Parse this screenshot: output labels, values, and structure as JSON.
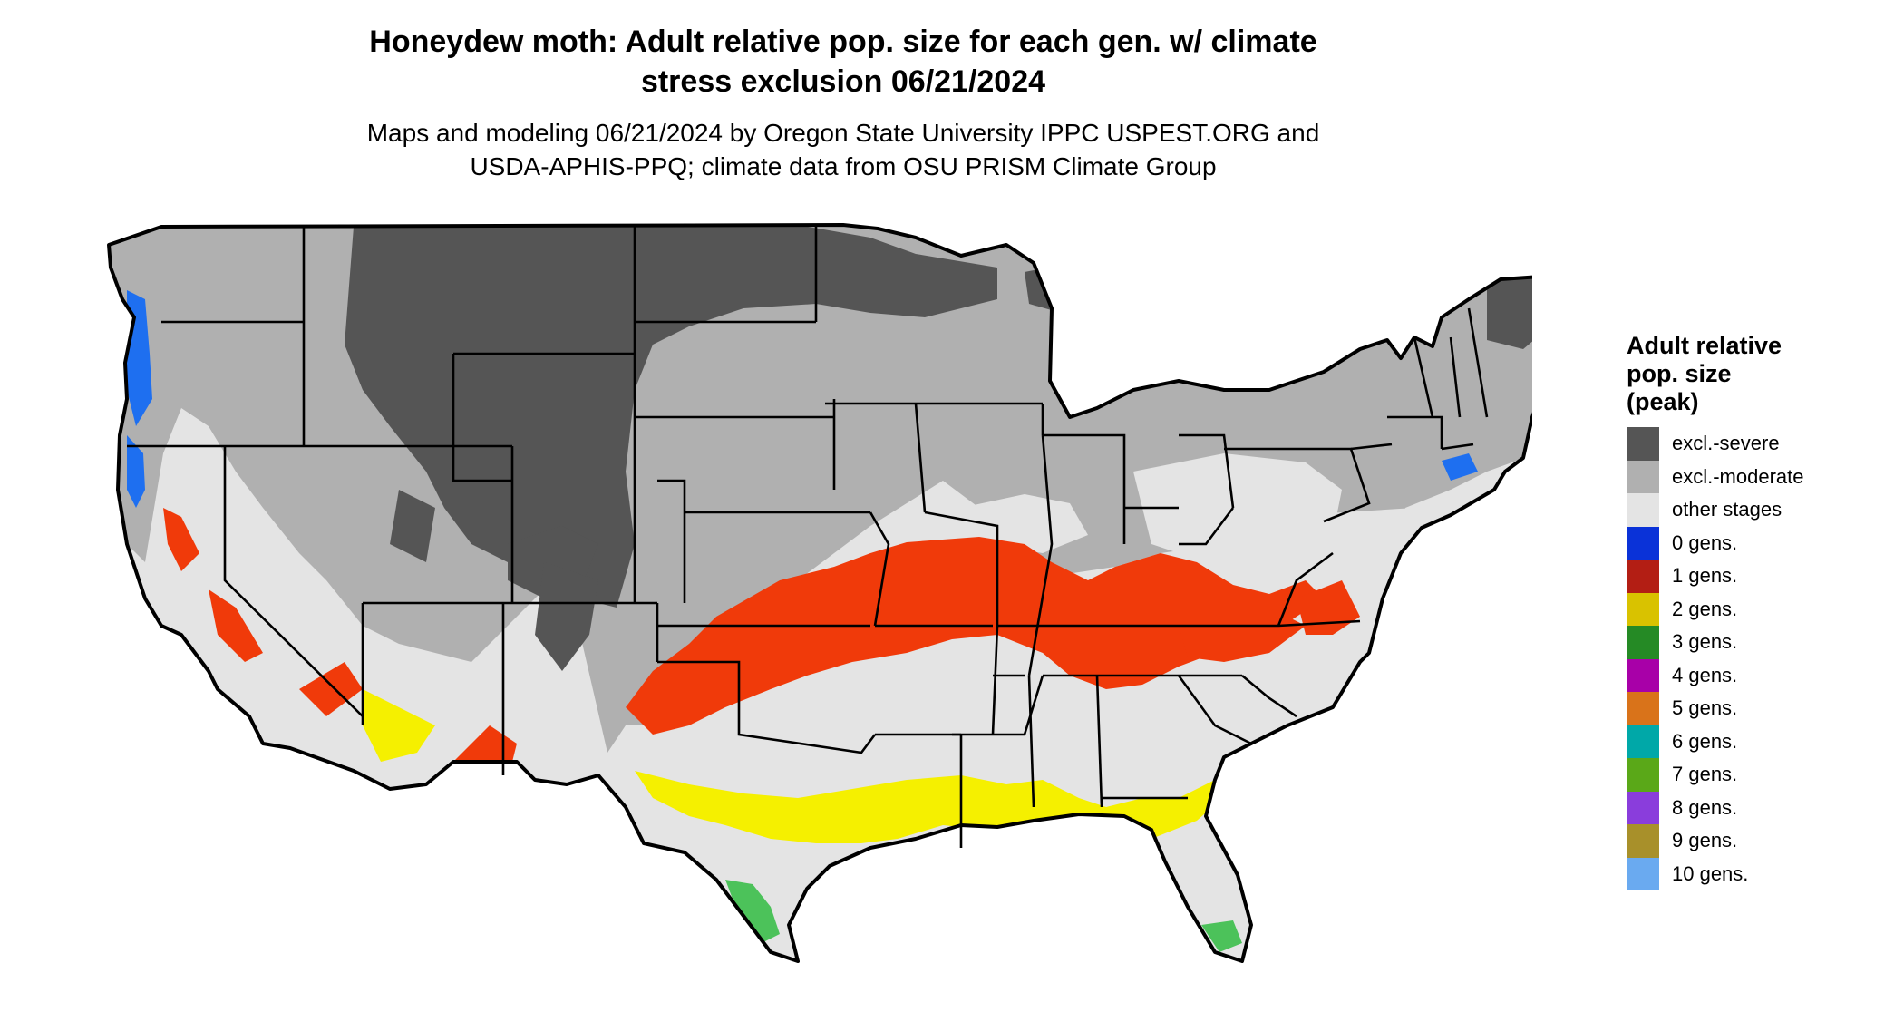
{
  "title": {
    "line1": "Honeydew moth: Adult relative pop. size for each gen. w/ climate",
    "line2": "stress exclusion 06/21/2024"
  },
  "subtitle": {
    "line1": "Maps and modeling 06/21/2024 by Oregon State University IPPC USPEST.ORG and",
    "line2": "USDA-APHIS-PPQ; climate data from OSU PRISM Climate Group"
  },
  "legend": {
    "title_lines": [
      "Adult relative",
      "pop. size",
      "(peak)"
    ],
    "items": [
      {
        "label": "excl.-severe",
        "color": "#555555"
      },
      {
        "label": "excl.-moderate",
        "color": "#b0b0b0"
      },
      {
        "label": "other stages",
        "color": "#e4e4e4"
      },
      {
        "label": "0 gens.",
        "color": "#0a32d8"
      },
      {
        "label": "1 gens.",
        "color": "#b31e14"
      },
      {
        "label": "2 gens.",
        "color": "#d9c200"
      },
      {
        "label": "3 gens.",
        "color": "#258a25"
      },
      {
        "label": "4 gens.",
        "color": "#a800a8"
      },
      {
        "label": "5 gens.",
        "color": "#d9731a"
      },
      {
        "label": "6 gens.",
        "color": "#00a8a8"
      },
      {
        "label": "7 gens.",
        "color": "#5aa818"
      },
      {
        "label": "8 gens.",
        "color": "#8a3ddc"
      },
      {
        "label": "9 gens.",
        "color": "#a8902a"
      },
      {
        "label": "10 gens.",
        "color": "#6aaaf0"
      }
    ]
  },
  "map_colors": {
    "severe": "#555555",
    "moderate": "#b0b0b0",
    "other": "#e4e4e4",
    "gen0": "#1e6ff0",
    "gen1": "#f03a0a",
    "gen2": "#f5f000",
    "gen3": "#4cc25a",
    "border": "#000000"
  }
}
